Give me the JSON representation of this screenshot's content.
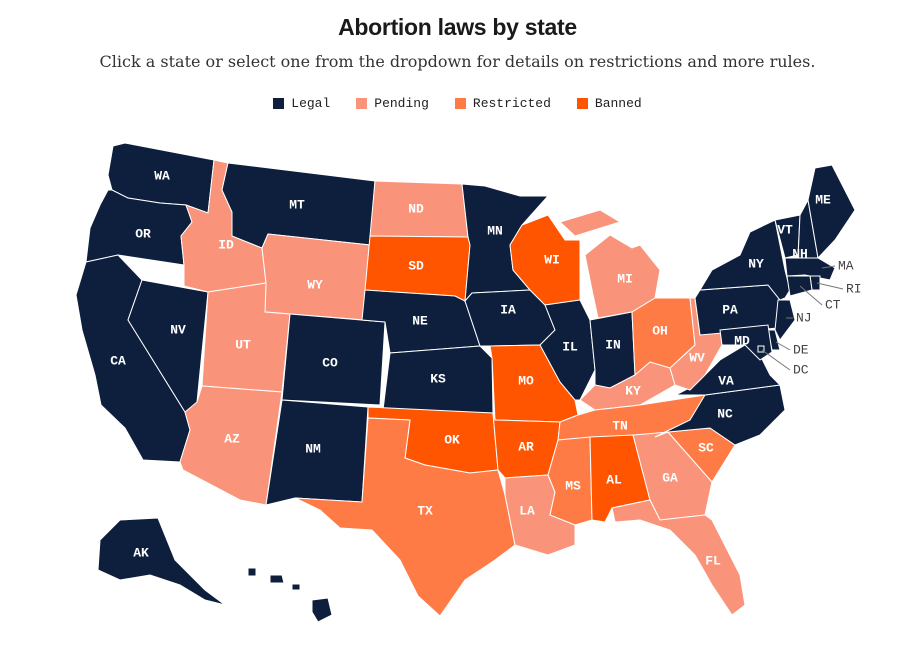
{
  "header": {
    "title": "Abortion laws by state",
    "subtitle": "Click a state or select one from the dropdown for details on restrictions and more rules."
  },
  "legend": [
    {
      "key": "legal",
      "label": "Legal",
      "color": "#0d1f3c"
    },
    {
      "key": "pending",
      "label": "Pending",
      "color": "#f9947a"
    },
    {
      "key": "restricted",
      "label": "Restricted",
      "color": "#ff7b45"
    },
    {
      "key": "banned",
      "label": "Banned",
      "color": "#ff5500"
    }
  ],
  "states": {
    "WA": "legal",
    "OR": "legal",
    "CA": "legal",
    "NV": "legal",
    "ID": "pending",
    "MT": "legal",
    "WY": "pending",
    "UT": "pending",
    "AZ": "pending",
    "CO": "legal",
    "NM": "legal",
    "ND": "pending",
    "SD": "banned",
    "NE": "legal",
    "KS": "legal",
    "OK": "banned",
    "TX": "restricted",
    "MN": "legal",
    "IA": "legal",
    "MO": "banned",
    "AR": "banned",
    "LA": "pending",
    "WI": "banned",
    "IL": "legal",
    "MI": "pending",
    "IN": "legal",
    "OH": "restricted",
    "KY": "pending",
    "TN": "restricted",
    "MS": "restricted",
    "AL": "banned",
    "GA": "pending",
    "FL": "pending",
    "SC": "restricted",
    "NC": "legal",
    "VA": "legal",
    "WV": "pending",
    "PA": "legal",
    "NY": "legal",
    "VT": "legal",
    "NH": "legal",
    "ME": "legal",
    "MA": "legal",
    "RI": "legal",
    "CT": "legal",
    "NJ": "legal",
    "DE": "legal",
    "MD": "legal",
    "DC": "legal",
    "AK": "legal",
    "HI": "legal"
  },
  "callouts": [
    "MA",
    "RI",
    "CT",
    "NJ",
    "DE",
    "DC"
  ]
}
